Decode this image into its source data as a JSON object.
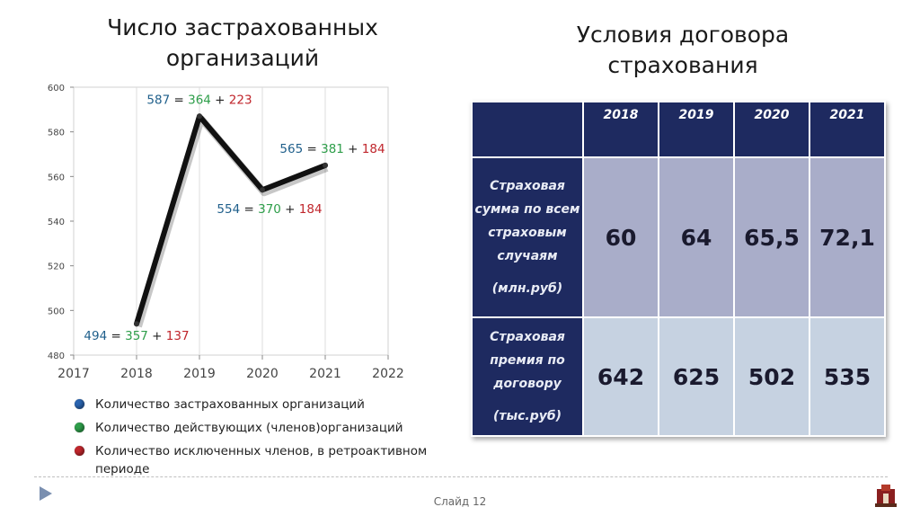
{
  "left_title": "Число застрахованных организаций",
  "right_title": "Условия договора страхования",
  "chart_data": {
    "type": "line",
    "x": [
      2018,
      2019,
      2020,
      2021
    ],
    "values": [
      494,
      587,
      554,
      565
    ],
    "xlim": [
      2017,
      2022
    ],
    "ylim": [
      480,
      600
    ],
    "x_ticks": [
      "2017",
      "2018",
      "2019",
      "2020",
      "2021",
      "2022"
    ],
    "y_ticks": [
      "480",
      "500",
      "520",
      "540",
      "560",
      "580",
      "600"
    ],
    "annotations": [
      {
        "total": "494",
        "active": "357",
        "excluded": "137"
      },
      {
        "total": "587",
        "active": "364",
        "excluded": "223"
      },
      {
        "total": "554",
        "active": "370",
        "excluded": "184"
      },
      {
        "total": "565",
        "active": "381",
        "excluded": "184"
      }
    ],
    "colors": {
      "line": "#111111",
      "total": "#1f5f8b",
      "active": "#2e9e4a",
      "excluded": "#c0262c"
    },
    "grid": "vertical",
    "legend": "bottom"
  },
  "legend": [
    {
      "label": "Количество застрахованных организаций",
      "color": "#2a64b0"
    },
    {
      "label": "Количество действующих (членов)организаций",
      "color": "#2e9e4a"
    },
    {
      "label": "Количество исключенных членов, в ретроактивном периоде",
      "color": "#c0262c"
    }
  ],
  "table": {
    "years": [
      "2018",
      "2019",
      "2020",
      "2021"
    ],
    "rows": [
      {
        "label": "Страховая сумма по всем страховым случаям",
        "unit": "(млн.руб)",
        "values": [
          "60",
          "64",
          "65,5",
          "72,1"
        ]
      },
      {
        "label": "Страховая премия по договору",
        "unit": "(тыс.руб)",
        "values": [
          "642",
          "625",
          "502",
          "535"
        ]
      }
    ]
  },
  "footer": {
    "slide": "Слайд 12"
  }
}
